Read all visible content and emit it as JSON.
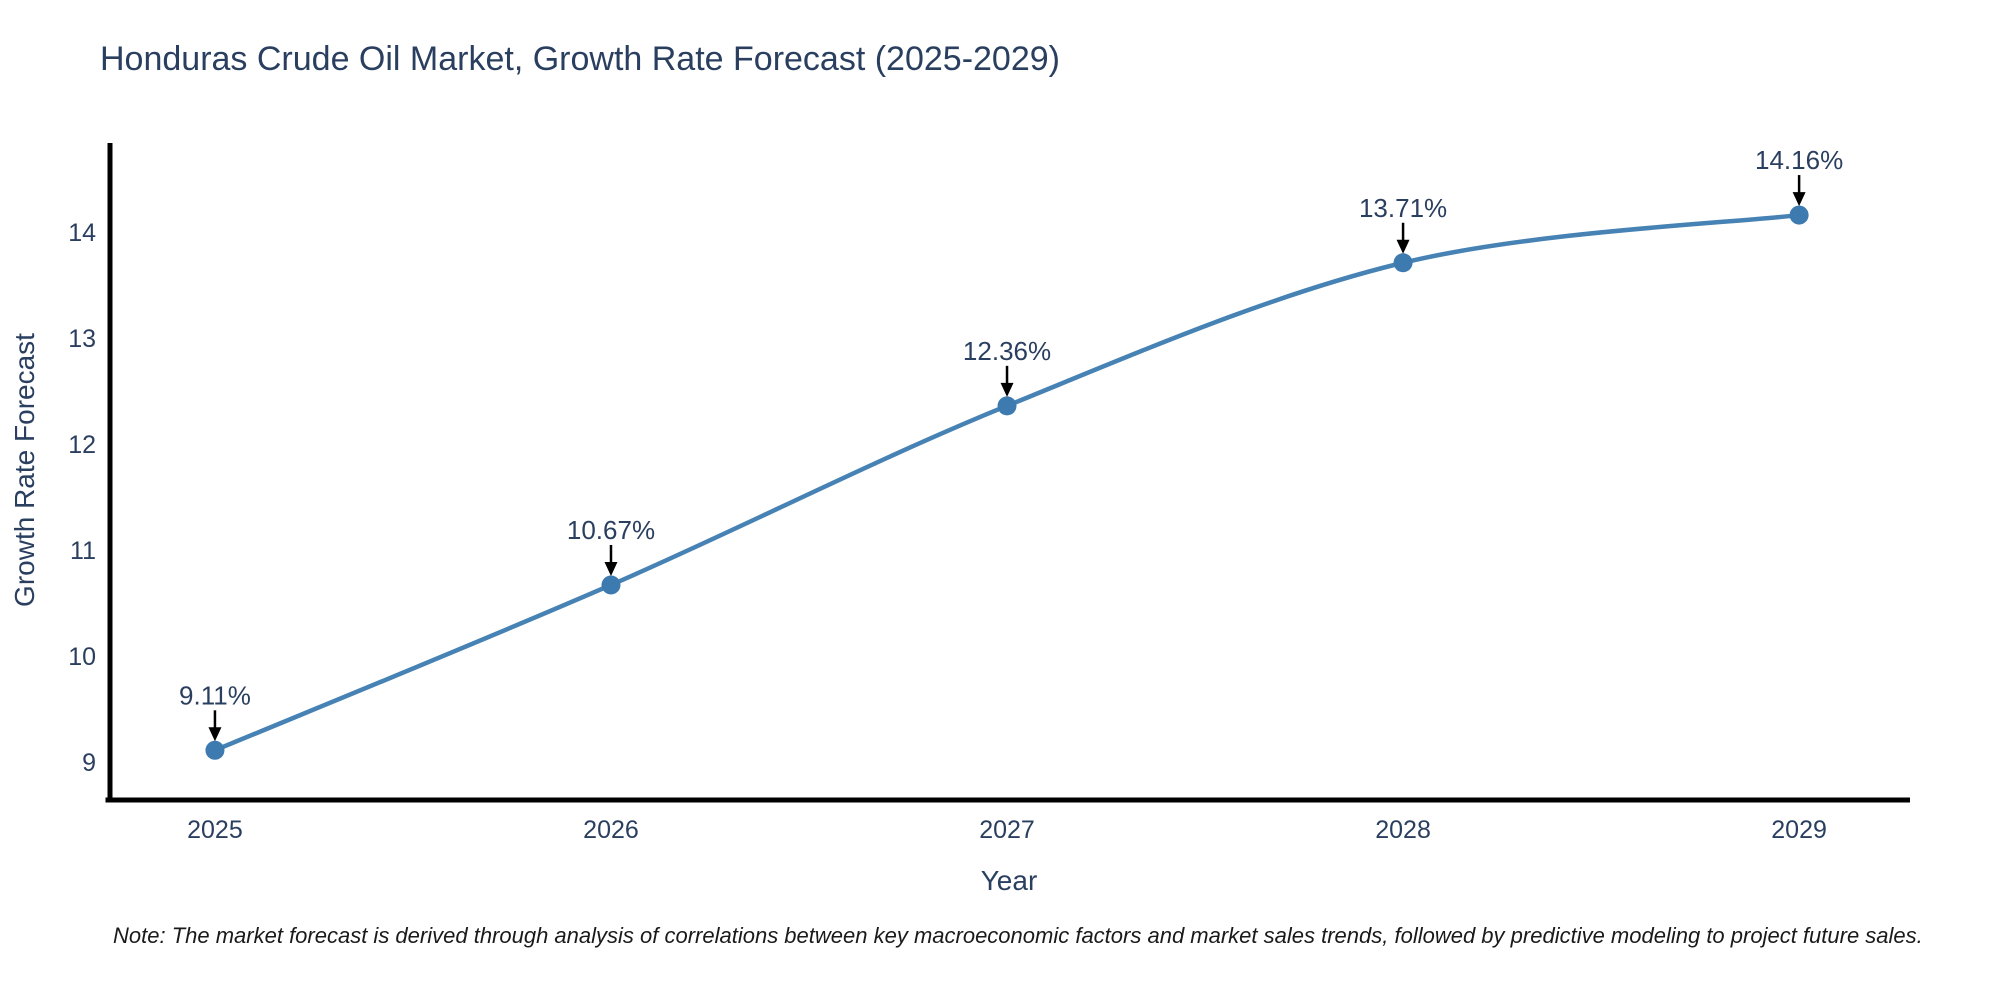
{
  "chart_data": {
    "type": "line",
    "title": "Honduras Crude Oil Market, Growth Rate Forecast (2025-2029)",
    "xlabel": "Year",
    "ylabel": "Growth Rate Forecast",
    "x": [
      2025,
      2026,
      2027,
      2028,
      2029
    ],
    "series": [
      {
        "name": "Growth Rate Forecast",
        "values": [
          9.11,
          10.67,
          12.36,
          13.71,
          14.16
        ],
        "point_labels": [
          "9.11%",
          "10.67%",
          "12.36%",
          "13.71%",
          "14.16%"
        ]
      }
    ],
    "x_tick_labels": [
      "2025",
      "2026",
      "2027",
      "2028",
      "2029"
    ],
    "y_tick_labels": [
      "9",
      "10",
      "11",
      "12",
      "13",
      "14"
    ],
    "y_ticks": [
      9,
      10,
      11,
      12,
      13,
      14
    ],
    "xlim": [
      2024.735,
      2029.28
    ],
    "ylim": [
      8.66,
      14.84
    ],
    "grid": false,
    "legend_position": "none",
    "line_shape": "spline",
    "colors": {
      "line": "#4682b4",
      "marker": "#3d7ab0",
      "axis_line": "#000000",
      "text": "#2a3f5f",
      "annotation_arrow": "#000000",
      "note_text": "#1a1a1a",
      "background": "#ffffff"
    },
    "note": "Note: The market forecast is derived through analysis of correlations between key macroeconomic factors and market sales trends, followed by predictive modeling to project future sales."
  }
}
